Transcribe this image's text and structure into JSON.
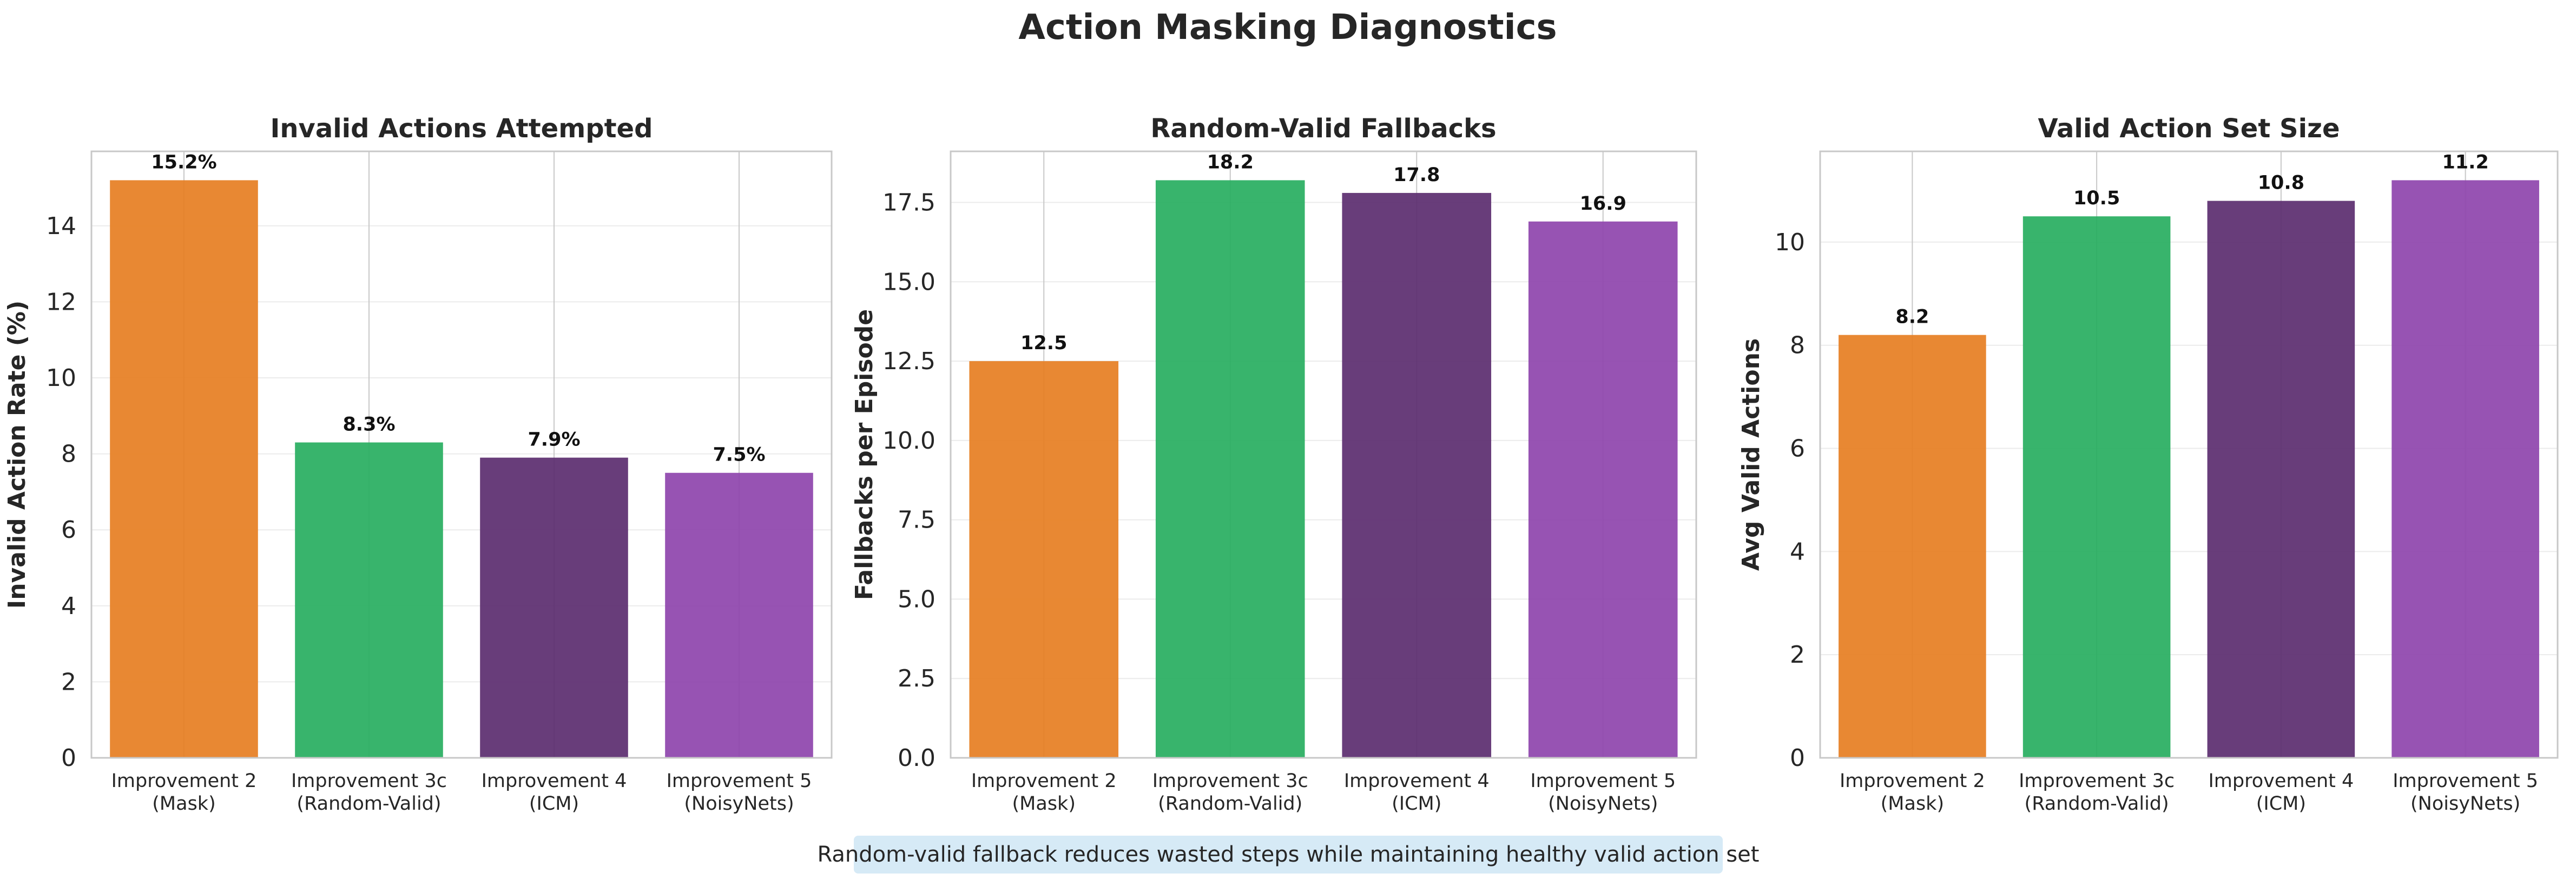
{
  "figure": {
    "title": "Action Masking Diagnostics",
    "note": "Random-valid fallback reduces wasted steps while maintaining healthy valid action set",
    "note_bg": "#d6eaf6"
  },
  "colors": {
    "axis_edge": "#c8c8c8",
    "grid": "#ebebeb",
    "bars": [
      "#e67e22",
      "#27ae60",
      "#5b2c6f",
      "#8e44ad"
    ]
  },
  "chart_data": [
    {
      "type": "bar",
      "title": "Invalid Actions Attempted",
      "ylabel": "Invalid Action Rate (%)",
      "xlabel": "",
      "categories": [
        [
          "Improvement 2",
          "(Mask)"
        ],
        [
          "Improvement 3c",
          "(Random-Valid)"
        ],
        [
          "Improvement 4",
          "(ICM)"
        ],
        [
          "Improvement 5",
          "(NoisyNets)"
        ]
      ],
      "values": [
        15.2,
        8.3,
        7.9,
        7.5
      ],
      "value_labels": [
        "15.2%",
        "8.3%",
        "7.9%",
        "7.5%"
      ],
      "ylim": [
        0,
        15.96
      ],
      "yticks": [
        0,
        2,
        4,
        6,
        8,
        10,
        12,
        14
      ],
      "ytick_labels": [
        "0",
        "2",
        "4",
        "6",
        "8",
        "10",
        "12",
        "14"
      ],
      "grid": true
    },
    {
      "type": "bar",
      "title": "Random-Valid Fallbacks",
      "ylabel": "Fallbacks per Episode",
      "xlabel": "",
      "categories": [
        [
          "Improvement 2",
          "(Mask)"
        ],
        [
          "Improvement 3c",
          "(Random-Valid)"
        ],
        [
          "Improvement 4",
          "(ICM)"
        ],
        [
          "Improvement 5",
          "(NoisyNets)"
        ]
      ],
      "values": [
        12.5,
        18.2,
        17.8,
        16.9
      ],
      "value_labels": [
        "12.5",
        "18.2",
        "17.8",
        "16.9"
      ],
      "ylim": [
        0,
        19.11
      ],
      "yticks": [
        0,
        2.5,
        5,
        7.5,
        10,
        12.5,
        15,
        17.5
      ],
      "ytick_labels": [
        "0.0",
        "2.5",
        "5.0",
        "7.5",
        "10.0",
        "12.5",
        "15.0",
        "17.5"
      ],
      "grid": true
    },
    {
      "type": "bar",
      "title": "Valid Action Set Size",
      "ylabel": "Avg Valid Actions",
      "xlabel": "",
      "categories": [
        [
          "Improvement 2",
          "(Mask)"
        ],
        [
          "Improvement 3c",
          "(Random-Valid)"
        ],
        [
          "Improvement 4",
          "(ICM)"
        ],
        [
          "Improvement 5",
          "(NoisyNets)"
        ]
      ],
      "values": [
        8.2,
        10.5,
        10.8,
        11.2
      ],
      "value_labels": [
        "8.2",
        "10.5",
        "10.8",
        "11.2"
      ],
      "ylim": [
        0,
        11.76
      ],
      "yticks": [
        0,
        2,
        4,
        6,
        8,
        10
      ],
      "ytick_labels": [
        "0",
        "2",
        "4",
        "6",
        "8",
        "10"
      ],
      "grid": true
    }
  ]
}
